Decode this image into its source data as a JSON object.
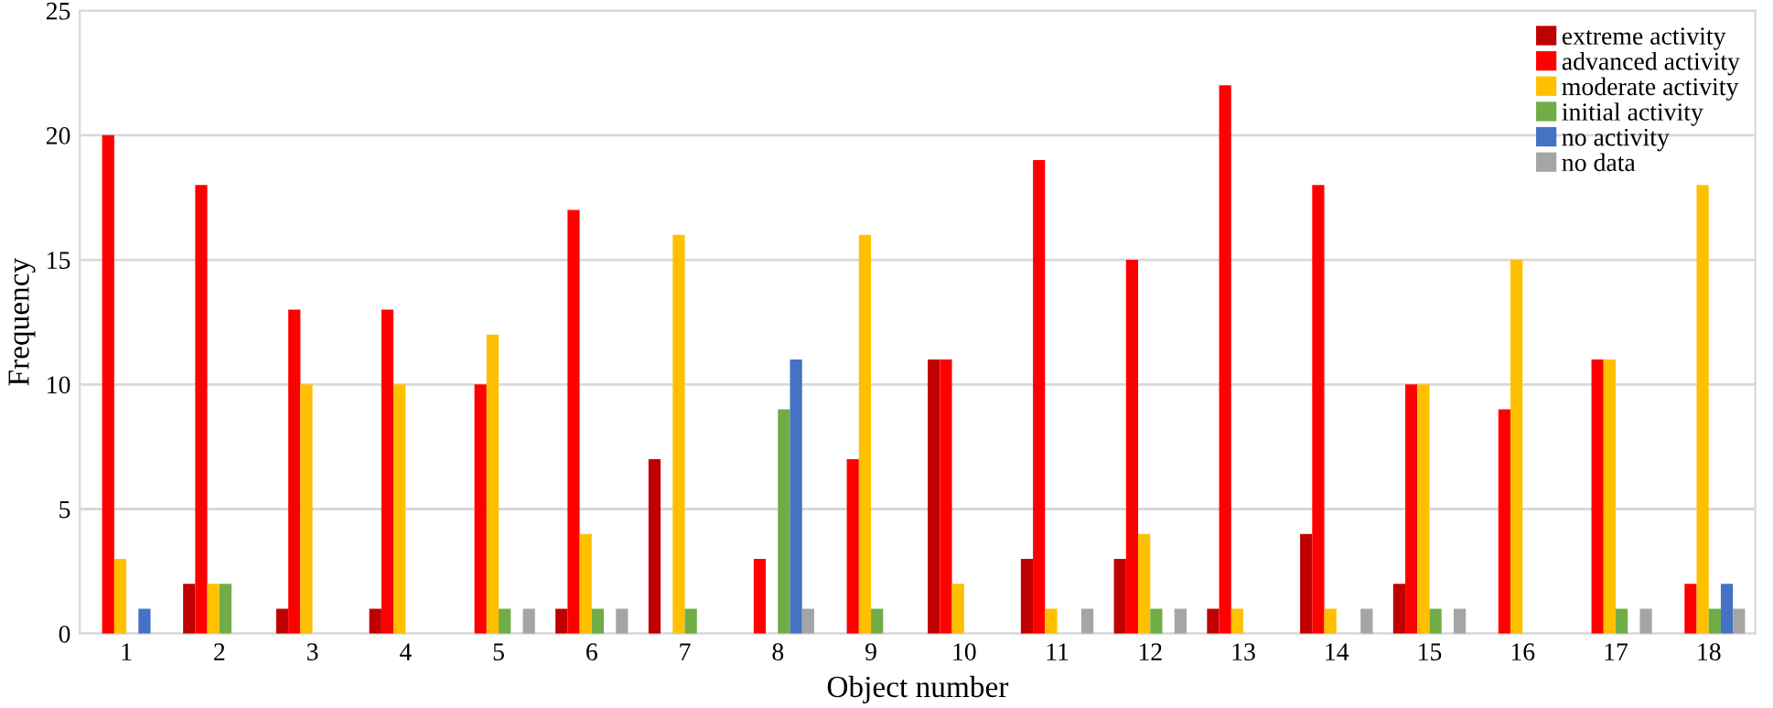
{
  "chart_data": {
    "type": "bar",
    "xlabel": "Object number",
    "ylabel": "Frequency",
    "categories": [
      "1",
      "2",
      "3",
      "4",
      "5",
      "6",
      "7",
      "8",
      "9",
      "10",
      "11",
      "12",
      "13",
      "14",
      "15",
      "16",
      "17",
      "18"
    ],
    "series": [
      {
        "name": "extreme activity",
        "color": "#c00000",
        "values": [
          0,
          2,
          1,
          1,
          0,
          1,
          7,
          0,
          0,
          11,
          3,
          3,
          1,
          4,
          2,
          0,
          0,
          0
        ]
      },
      {
        "name": "advanced activity",
        "color": "#ff0000",
        "values": [
          20,
          18,
          13,
          13,
          10,
          17,
          0,
          3,
          7,
          11,
          19,
          15,
          22,
          18,
          10,
          9,
          11,
          2
        ]
      },
      {
        "name": "moderate activity",
        "color": "#ffc000",
        "values": [
          3,
          2,
          10,
          10,
          12,
          4,
          16,
          0,
          16,
          2,
          1,
          4,
          1,
          1,
          10,
          15,
          11,
          18
        ]
      },
      {
        "name": "initial activity",
        "color": "#70ad47",
        "values": [
          0,
          2,
          0,
          0,
          1,
          1,
          1,
          9,
          1,
          0,
          0,
          1,
          0,
          0,
          1,
          0,
          1,
          1
        ]
      },
      {
        "name": "no activity",
        "color": "#4472c4",
        "values": [
          1,
          0,
          0,
          0,
          0,
          0,
          0,
          11,
          0,
          0,
          0,
          0,
          0,
          0,
          0,
          0,
          0,
          2
        ]
      },
      {
        "name": "no data",
        "color": "#a5a5a5",
        "values": [
          0,
          0,
          0,
          0,
          1,
          1,
          0,
          1,
          0,
          0,
          1,
          1,
          0,
          1,
          1,
          0,
          1,
          1
        ]
      }
    ],
    "ylim": [
      0,
      25
    ],
    "yticks": [
      0,
      5,
      10,
      15,
      20,
      25
    ],
    "grid": "y",
    "legend": "top right"
  }
}
